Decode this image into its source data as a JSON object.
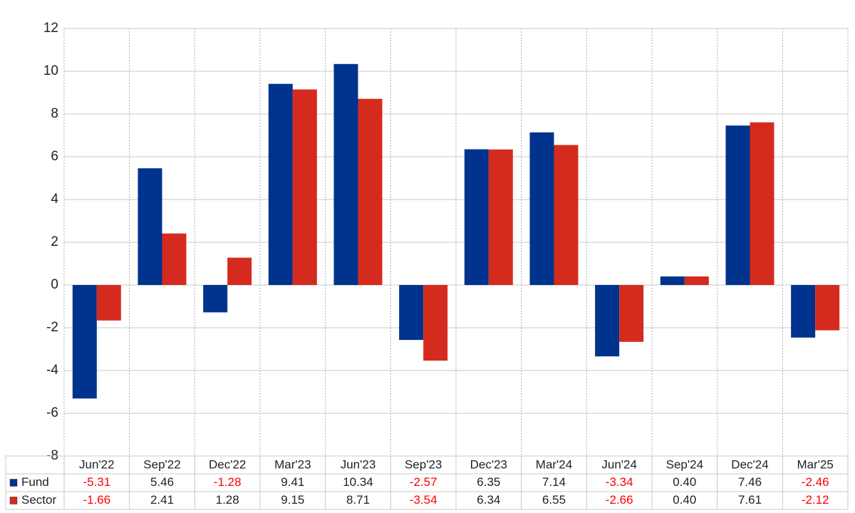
{
  "chart_data": {
    "type": "bar",
    "categories": [
      "Jun'22",
      "Sep'22",
      "Dec'22",
      "Mar'23",
      "Jun'23",
      "Sep'23",
      "Dec'23",
      "Mar'24",
      "Jun'24",
      "Sep'24",
      "Dec'24",
      "Mar'25"
    ],
    "series": [
      {
        "name": "Fund",
        "color": "#00338d",
        "values": [
          -5.31,
          5.46,
          -1.28,
          9.41,
          10.34,
          -2.57,
          6.35,
          7.14,
          -3.34,
          0.4,
          7.46,
          -2.46
        ],
        "value_labels": [
          "-5.31",
          "5.46",
          "-1.28",
          "9.41",
          "10.34",
          "-2.57",
          "6.35",
          "7.14",
          "-3.34",
          "0.40",
          "7.46",
          "-2.46"
        ]
      },
      {
        "name": "Sector",
        "color": "#d52b1e",
        "values": [
          -1.66,
          2.41,
          1.28,
          9.15,
          8.71,
          -3.54,
          6.34,
          6.55,
          -2.66,
          0.4,
          7.61,
          -2.12
        ],
        "value_labels": [
          "-1.66",
          "2.41",
          "1.28",
          "9.15",
          "8.71",
          "-3.54",
          "6.34",
          "6.55",
          "-2.66",
          "0.40",
          "7.61",
          "-2.12"
        ]
      }
    ],
    "ylim": [
      -8,
      12
    ],
    "yticks": [
      -8,
      -6,
      -4,
      -2,
      0,
      2,
      4,
      6,
      8,
      10,
      12
    ],
    "grid": true,
    "negative_label_color": "#ff0000"
  }
}
